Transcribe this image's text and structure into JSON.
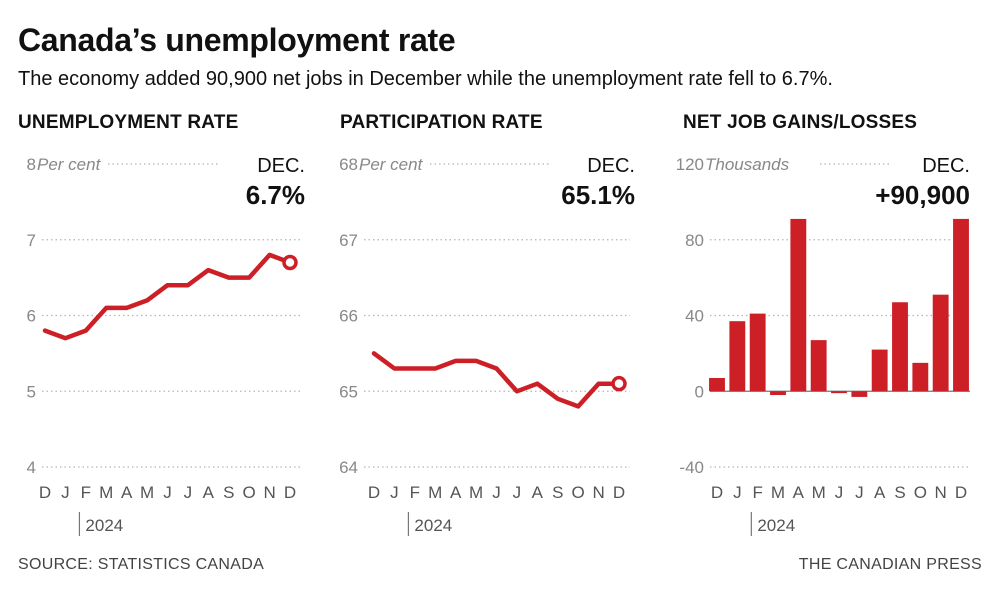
{
  "title": "Canada’s unemployment rate",
  "subtitle": "The economy added 90,900 net jobs in December while the unemployment rate fell to 6.7%.",
  "source": "SOURCE: STATISTICS CANADA",
  "credit": "THE CANADIAN PRESS",
  "colors": {
    "series": "#cc1f26",
    "grid": "#b5b5b5",
    "axis": "#555555",
    "muted": "#888888"
  },
  "chart_data": [
    {
      "type": "line",
      "title": "UNEMPLOYMENT RATE",
      "unit_label": "Per cent",
      "callout_month": "DEC.",
      "callout_value": "6.7%",
      "categories": [
        "D",
        "J",
        "F",
        "M",
        "A",
        "M",
        "J",
        "J",
        "A",
        "S",
        "O",
        "N",
        "D"
      ],
      "year_label": "2024",
      "yticks": [
        4,
        5,
        6,
        7,
        8
      ],
      "ylim": [
        4,
        8
      ],
      "values": [
        5.8,
        5.7,
        5.8,
        6.1,
        6.1,
        6.2,
        6.4,
        6.4,
        6.6,
        6.5,
        6.5,
        6.8,
        6.7
      ]
    },
    {
      "type": "line",
      "title": "PARTICIPATION RATE",
      "unit_label": "Per cent",
      "callout_month": "DEC.",
      "callout_value": "65.1%",
      "categories": [
        "D",
        "J",
        "F",
        "M",
        "A",
        "M",
        "J",
        "J",
        "A",
        "S",
        "O",
        "N",
        "D"
      ],
      "year_label": "2024",
      "yticks": [
        64,
        65,
        66,
        67,
        68
      ],
      "ylim": [
        64,
        68
      ],
      "values": [
        65.5,
        65.3,
        65.3,
        65.3,
        65.4,
        65.4,
        65.3,
        65.0,
        65.1,
        64.9,
        64.8,
        65.1,
        65.1
      ]
    },
    {
      "type": "bar",
      "title": "NET JOB GAINS/LOSSES",
      "unit_label": "Thousands",
      "callout_month": "DEC.",
      "callout_value": "+90,900",
      "categories": [
        "D",
        "J",
        "F",
        "M",
        "A",
        "M",
        "J",
        "J",
        "A",
        "S",
        "O",
        "N",
        "D"
      ],
      "year_label": "2024",
      "yticks": [
        -40,
        0,
        40,
        80,
        120
      ],
      "ylim": [
        -40,
        120
      ],
      "values": [
        7,
        37,
        41,
        -2,
        91,
        27,
        -1,
        -3,
        22,
        47,
        15,
        51,
        91
      ]
    }
  ]
}
